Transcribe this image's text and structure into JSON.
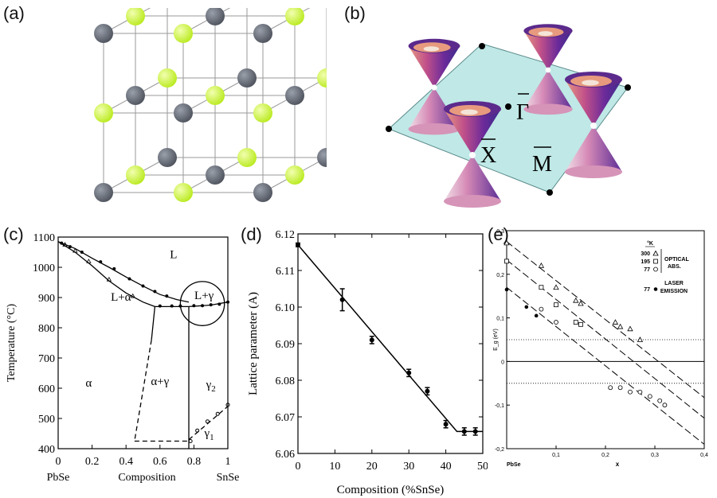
{
  "panel_labels": {
    "a": "(a)",
    "b": "(b)",
    "c": "(c)",
    "d": "(d)",
    "e": "(e)"
  },
  "colors": {
    "atom_dark": "#4d525c",
    "atom_green": "#b9ea1e",
    "bz_plane": "#bfe8e6",
    "cone_outer": "#7a2a9a",
    "cone_inner": "#e8a07a"
  },
  "brillouin": {
    "gamma": "Γ",
    "x": "X",
    "m": "M"
  },
  "chart_data": [
    {
      "id": "c",
      "type": "line",
      "ylabel": "Temperature (°C)",
      "xlabel": "Composition",
      "x_end_labels": {
        "left": "PbSe",
        "right": "SnSe"
      },
      "x_ticks": [
        0,
        0.2,
        0.4,
        0.6,
        0.8,
        1
      ],
      "x_tick_labels": [
        "0",
        "0.2",
        "0.4",
        "0.6",
        "0.8",
        "1"
      ],
      "y_ticks": [
        400,
        500,
        600,
        700,
        800,
        900,
        1000,
        1100
      ],
      "y_tick_labels": [
        "400",
        "500",
        "600",
        "700",
        "800",
        "900",
        "1000",
        "1100"
      ],
      "xlim": [
        0,
        1
      ],
      "ylim": [
        400,
        1100
      ],
      "regions": [
        {
          "text": "L",
          "x": 0.68,
          "y": 1030
        },
        {
          "text": "L+α",
          "x": 0.37,
          "y": 890
        },
        {
          "text": "L+γ",
          "x": 0.86,
          "y": 895
        },
        {
          "text": "α",
          "x": 0.18,
          "y": 605
        },
        {
          "text": "α+γ",
          "x": 0.6,
          "y": 610
        },
        {
          "text": "γ",
          "sub": "2",
          "x": 0.9,
          "y": 600
        },
        {
          "text": "γ",
          "sub": "1",
          "x": 0.89,
          "y": 440
        }
      ],
      "liquidus": [
        [
          0,
          1085
        ],
        [
          0.1,
          1062
        ],
        [
          0.2,
          1030
        ],
        [
          0.3,
          1000
        ],
        [
          0.4,
          968
        ],
        [
          0.5,
          938
        ],
        [
          0.6,
          910
        ],
        [
          0.7,
          893
        ],
        [
          0.77,
          885
        ]
      ],
      "solidus": [
        [
          0,
          1085
        ],
        [
          0.1,
          1050
        ],
        [
          0.2,
          1005
        ],
        [
          0.3,
          955
        ],
        [
          0.4,
          915
        ],
        [
          0.5,
          885
        ],
        [
          0.57,
          870
        ]
      ],
      "eutectic": [
        [
          0.57,
          870
        ],
        [
          0.77,
          870
        ],
        [
          0.9,
          875
        ],
        [
          1,
          885
        ]
      ],
      "alpha_boundary": [
        [
          0.57,
          870
        ],
        [
          0.55,
          760
        ]
      ],
      "alpha_boundary_dashed": [
        [
          0.55,
          760
        ],
        [
          0.45,
          425
        ]
      ],
      "gamma_boundary": [
        [
          0.77,
          870
        ],
        [
          0.77,
          400
        ]
      ],
      "gamma_transition_dashed": [
        [
          0.77,
          430
        ],
        [
          1,
          540
        ]
      ],
      "bottom_dashed": [
        [
          0.45,
          425
        ],
        [
          0.76,
          425
        ]
      ],
      "points_liquidus": [
        [
          0.02,
          1080
        ],
        [
          0.07,
          1068
        ],
        [
          0.14,
          1050
        ],
        [
          0.25,
          1018
        ],
        [
          0.33,
          995
        ],
        [
          0.42,
          962
        ],
        [
          0.5,
          938
        ],
        [
          0.57,
          920
        ],
        [
          0.64,
          905
        ]
      ],
      "points_solidus": [
        [
          0.04,
          1075
        ],
        [
          0.1,
          1055
        ],
        [
          0.18,
          1020
        ],
        [
          0.3,
          960
        ],
        [
          0.44,
          905
        ]
      ],
      "points_eutectic": [
        [
          0.6,
          872
        ],
        [
          0.67,
          872
        ],
        [
          0.72,
          872
        ],
        [
          0.8,
          873
        ],
        [
          0.85,
          873
        ],
        [
          0.9,
          876
        ],
        [
          0.95,
          878
        ],
        [
          1,
          885
        ]
      ],
      "points_gamma": [
        [
          0.78,
          425
        ],
        [
          0.82,
          460
        ],
        [
          0.88,
          490
        ],
        [
          0.94,
          515
        ],
        [
          1,
          545
        ]
      ],
      "circle": {
        "x": 0.85,
        "y": 880,
        "r_x": 0.13
      }
    },
    {
      "id": "d",
      "type": "line",
      "ylabel": "Lattice parameter (A)",
      "xlabel": "Composition (%SnSe)",
      "x_ticks": [
        0,
        10,
        20,
        30,
        40,
        50
      ],
      "x_tick_labels": [
        "0",
        "10",
        "20",
        "30",
        "40",
        "50"
      ],
      "y_ticks": [
        6.06,
        6.07,
        6.08,
        6.09,
        6.1,
        6.11,
        6.12
      ],
      "y_tick_labels": [
        "6.06",
        "6.07",
        "6.08",
        "6.09",
        "6.10",
        "6.11",
        "6.12"
      ],
      "xlim": [
        0,
        50
      ],
      "ylim": [
        6.06,
        6.12
      ],
      "series": [
        {
          "points": [
            [
              0,
              6.117
            ],
            [
              12,
              6.102
            ],
            [
              20,
              6.091
            ],
            [
              30,
              6.082
            ],
            [
              35,
              6.077
            ],
            [
              40,
              6.068
            ],
            [
              45,
              6.066
            ],
            [
              48,
              6.066
            ]
          ],
          "errors": [
            0.0005,
            0.003,
            0.001,
            0.001,
            0.001,
            0.001,
            0.001,
            0.001
          ]
        }
      ],
      "fit": [
        [
          0,
          6.117
        ],
        [
          43,
          6.066
        ],
        [
          50,
          6.066
        ]
      ]
    },
    {
      "id": "e",
      "type": "scatter",
      "ylabel": "E_g (eV)",
      "xlabel": "x",
      "x_left_label": "PbSe",
      "x_ticks": [
        0.1,
        0.2,
        0.3,
        0.4
      ],
      "x_tick_labels": [
        "0,1",
        "0,2",
        "0,3",
        "0,4"
      ],
      "y_ticks": [
        -0.2,
        -0.1,
        0,
        0.1,
        0.2,
        0.3
      ],
      "y_tick_labels": [
        "-0,2",
        "-0,1",
        "0",
        "0,1",
        "0,2",
        "0,3"
      ],
      "xlim": [
        0,
        0.4
      ],
      "ylim": [
        -0.2,
        0.3
      ],
      "legend": {
        "unit": "°K",
        "rows": [
          {
            "temp": "300",
            "marker": "triangle"
          },
          {
            "temp": "195",
            "marker": "square"
          },
          {
            "temp": "77",
            "marker": "circle"
          }
        ],
        "group_label_1": "OPTICAL",
        "group_label_2": "ABS.",
        "laser_temp": "77",
        "laser_label_1": "LASER",
        "laser_label_2": "EMISSION"
      },
      "series": [
        {
          "name": "300",
          "marker": "triangle",
          "points": [
            [
              0,
              0.272
            ],
            [
              0.07,
              0.22
            ],
            [
              0.1,
              0.17
            ],
            [
              0.14,
              0.14
            ],
            [
              0.15,
              0.133
            ],
            [
              0.22,
              0.09
            ],
            [
              0.23,
              0.08
            ],
            [
              0.25,
              0.075
            ],
            [
              0.27,
              0.05
            ]
          ]
        },
        {
          "name": "195",
          "marker": "square",
          "points": [
            [
              0,
              0.23
            ],
            [
              0.07,
              0.17
            ],
            [
              0.1,
              0.13
            ],
            [
              0.14,
              0.09
            ],
            [
              0.15,
              0.085
            ]
          ]
        },
        {
          "name": "77",
          "marker": "circle",
          "points": [
            [
              0.07,
              0.12
            ],
            [
              0.1,
              0.09
            ],
            [
              0.21,
              -0.06
            ],
            [
              0.23,
              -0.06
            ],
            [
              0.25,
              -0.07
            ],
            [
              0.27,
              -0.07
            ],
            [
              0.29,
              -0.08
            ],
            [
              0.31,
              -0.09
            ],
            [
              0.32,
              -0.1
            ]
          ]
        },
        {
          "name": "laser",
          "marker": "filled-circle",
          "points": [
            [
              0,
              0.165
            ],
            [
              0.04,
              0.125
            ],
            [
              0.06,
              0.105
            ]
          ]
        }
      ],
      "lines": [
        [
          [
            0,
            0.275
          ],
          [
            0.4,
            -0.083
          ]
        ],
        [
          [
            0,
            0.233
          ],
          [
            0.4,
            -0.13
          ]
        ],
        [
          [
            0,
            0.17
          ],
          [
            0.4,
            -0.19
          ]
        ]
      ],
      "hlines_dotted": [
        0.05,
        -0.05
      ]
    }
  ]
}
